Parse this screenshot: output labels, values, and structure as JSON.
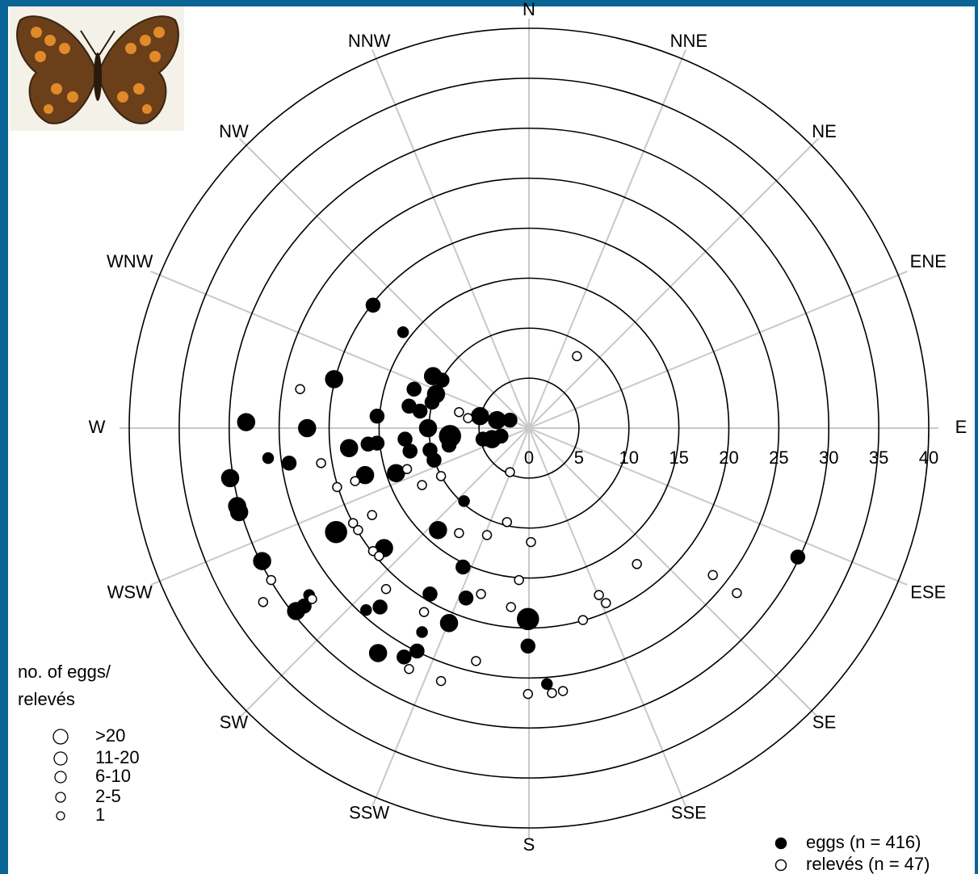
{
  "chart_data": {
    "type": "polar-scatter",
    "rlim": [
      0,
      40
    ],
    "rticks": [
      0,
      5,
      10,
      15,
      20,
      25,
      30,
      35,
      40
    ],
    "directions": [
      "N",
      "NNE",
      "NE",
      "ENE",
      "E",
      "ESE",
      "SE",
      "SSE",
      "S",
      "SSW",
      "SW",
      "WSW",
      "W",
      "WNW",
      "NW",
      "NNW"
    ],
    "size_legend_title": [
      "no. of eggs/",
      "relevés"
    ],
    "size_legend": [
      ">20",
      "11-20",
      "6-10",
      "2-5",
      "1"
    ],
    "series": [
      {
        "name": "eggs (n = 416)",
        "color": "#000000",
        "fill": "#000000",
        "x": [
          -15.6,
          -12.6,
          -19.5,
          -9.6,
          -8.7,
          -11.5,
          -9.3,
          -9.7,
          -12.0,
          -10.9,
          -15.2,
          -4.9,
          -3.2,
          -1.9,
          -28.3,
          -22.2,
          -10.1,
          -7.9,
          -12.4,
          -15.2,
          -16.1,
          -4.6,
          -3.7,
          -2.8,
          -9.9,
          -8.0,
          -11.9,
          -9.5,
          -18.0,
          -24.0,
          -26.1,
          -16.4,
          -13.3,
          -29.9,
          -29.2,
          -29.0,
          -6.5,
          -9.1,
          -19.3,
          -14.5,
          -6.6,
          -26.7,
          -9.9,
          -6.3,
          -22.0,
          -22.5,
          -23.3,
          -16.3,
          -14.9,
          -8.0,
          -10.7,
          -0.1,
          -0.1,
          -15.1,
          -12.5,
          -11.2,
          1.8,
          26.9
        ],
        "y": [
          12.3,
          9.6,
          4.9,
          5.2,
          4.8,
          3.9,
          3.4,
          2.6,
          2.2,
          1.7,
          1.2,
          1.2,
          0.8,
          0.8,
          0.6,
          0,
          0,
          -0.8,
          -1.1,
          -1.5,
          -1.6,
          -1.1,
          -1.1,
          -0.8,
          -2.2,
          -1.7,
          -2.3,
          -3.2,
          -2.0,
          -3.5,
          -3.0,
          -4.7,
          -4.5,
          -5.0,
          -7.8,
          -8.4,
          -7.3,
          -10.2,
          -10.4,
          -12.0,
          -13.9,
          -13.3,
          -16.6,
          -17.0,
          -16.7,
          -17.8,
          -18.3,
          -18.2,
          -17.9,
          -19.5,
          -20.4,
          -19.1,
          -21.8,
          -22.5,
          -22.9,
          -22.3,
          -25.6,
          -12.9
        ],
        "size_class": [
          2,
          3,
          1,
          1,
          2,
          2,
          1,
          2,
          2,
          2,
          2,
          1,
          1,
          2,
          1,
          1,
          1,
          0,
          2,
          2,
          2,
          2,
          1,
          2,
          2,
          2,
          2,
          2,
          1,
          2,
          3,
          1,
          1,
          1,
          1,
          1,
          3,
          1,
          0,
          1,
          2,
          1,
          2,
          2,
          3,
          2,
          1,
          3,
          2,
          1,
          3,
          0,
          2,
          1,
          2,
          2,
          3,
          2
        ]
      },
      {
        "name": "relevés (n = 47)",
        "color": "#000000",
        "fill": "#ffffff",
        "x": [
          4.8,
          -22.9,
          -7.0,
          -6.1,
          -20.8,
          -19.2,
          -17.4,
          -10.7,
          -8.8,
          -12.2,
          -1.9,
          -15.7,
          -17.6,
          -17.1,
          -15.6,
          -15.0,
          -7.0,
          -4.2,
          -2.2,
          0.2,
          -1.0,
          -4.8,
          -1.8,
          -10.5,
          -14.3,
          -25.8,
          -26.6,
          -21.7,
          10.8,
          7.0,
          7.7,
          5.4,
          18.4,
          20.8,
          -5.3,
          -12.0,
          -8.8,
          -0.1,
          2.3,
          3.4
        ],
        "y": [
          7.2,
          3.9,
          1.6,
          1.0,
          -3.5,
          -5.9,
          -5.3,
          -5.7,
          -4.8,
          -4.1,
          -4.4,
          -8.7,
          -9.5,
          -10.2,
          -12.3,
          -12.8,
          -10.5,
          -10.7,
          -9.4,
          -11.4,
          -15.2,
          -16.6,
          -17.9,
          -18.4,
          -16.1,
          -15.2,
          -17.4,
          -17.1,
          -13.6,
          -16.7,
          -17.5,
          -19.2,
          -14.7,
          -16.5,
          -23.3,
          -24.1,
          -25.3,
          -26.6,
          -26.5,
          -26.3
        ],
        "size_class": [
          4,
          4,
          4,
          4,
          4,
          4,
          4,
          4,
          4,
          4,
          4,
          4,
          4,
          4,
          4,
          4,
          4,
          4,
          4,
          4,
          4,
          4,
          4,
          4,
          4,
          4,
          4,
          4,
          4,
          4,
          4,
          4,
          4,
          4,
          4,
          4,
          4,
          4,
          4,
          4
        ]
      }
    ]
  }
}
